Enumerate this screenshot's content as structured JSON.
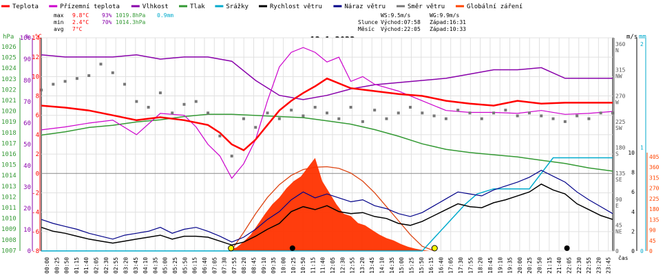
{
  "chart_data": {
    "type": "line",
    "title": "12.1.2023",
    "legend": [
      {
        "name": "Teplota",
        "color": "#ff0000"
      },
      {
        "name": "Přízemní teplota",
        "color": "#cc00cc"
      },
      {
        "name": "Vlhkost",
        "color": "#8800aa"
      },
      {
        "name": "Tlak",
        "color": "#339933"
      },
      {
        "name": "Srážky",
        "color": "#00aacc"
      },
      {
        "name": "Rychlost větru",
        "color": "#000000"
      },
      {
        "name": "Náraz větru",
        "color": "#000088"
      },
      {
        "name": "Směr větru",
        "color": "#777777"
      },
      {
        "name": "Globální záření",
        "color": "#ff4400"
      }
    ],
    "stats": {
      "max": {
        "label": "max",
        "temp": "9.8°C",
        "hum": "93%",
        "press": "1019.8hPa",
        "rain": "0.9mm"
      },
      "min": {
        "label": "min",
        "temp": "2.4°C",
        "hum": "70%",
        "press": "1014.3hPa"
      },
      "avg": {
        "label": "avg",
        "temp": "7°C"
      }
    },
    "info": {
      "ws": "WS:9.5m/s",
      "wg": "WG:9.9m/s",
      "sun_label": "Slunce",
      "sun_rise": "Východ:07:58",
      "sun_set": "Západ:16:31",
      "moon_label": "Měsíc",
      "moon_rise": "Východ:22:05",
      "moon_set": "Západ:10:33"
    },
    "axes": {
      "pressure": {
        "unit": "hPa",
        "ticks": [
          "1026",
          "1025",
          "1024",
          "1023",
          "1022",
          "1021",
          "1020",
          "1019",
          "1018",
          "1017",
          "1016",
          "1015",
          "1014",
          "1013",
          "1012",
          "1011",
          "1010",
          "1009",
          "1008",
          "1007"
        ]
      },
      "humidity": {
        "unit": "%",
        "ticks": [
          "100",
          "90",
          "80",
          "70",
          "60",
          "50",
          "40",
          "30",
          "20",
          "10",
          "0"
        ]
      },
      "temperature": {
        "unit": "°C",
        "ticks": [
          "14",
          "12",
          "10",
          "8",
          "6",
          "4",
          "2",
          "0",
          "-2",
          "-4",
          "-6",
          "-8"
        ],
        "ylim": [
          -8,
          14
        ]
      },
      "direction": {
        "ticks": [
          {
            "deg": "360",
            "dir": "N"
          },
          {
            "deg": "315",
            "dir": "NW"
          },
          {
            "deg": "270",
            "dir": "W"
          },
          {
            "deg": "225",
            "dir": "SW"
          },
          {
            "deg": "180",
            "dir": "S"
          },
          {
            "deg": "135",
            "dir": "SE"
          },
          {
            "deg": "90",
            "dir": "E"
          },
          {
            "deg": "45",
            "dir": "NE"
          },
          {
            "deg": "0",
            "dir": ""
          }
        ]
      },
      "wind": {
        "unit": "m/s",
        "ticks": [
          "10",
          "8",
          "6",
          "4",
          "2",
          "0"
        ]
      },
      "rain": {
        "unit": "mm",
        "ticks": [
          "2",
          "1",
          "0"
        ]
      },
      "radiation": {
        "ticks": [
          "405",
          "360",
          "315",
          "270",
          "225",
          "180",
          "135",
          "90",
          "45",
          "0"
        ]
      },
      "time": {
        "label": "čas",
        "ticks": [
          "00:00",
          "00:25",
          "00:50",
          "01:15",
          "01:40",
          "02:05",
          "02:30",
          "02:55",
          "03:20",
          "03:45",
          "04:10",
          "04:35",
          "05:00",
          "05:25",
          "05:50",
          "06:15",
          "06:40",
          "07:05",
          "07:30",
          "07:55",
          "08:20",
          "08:45",
          "09:10",
          "09:35",
          "10:00",
          "10:25",
          "10:50",
          "11:15",
          "11:40",
          "12:05",
          "12:30",
          "12:55",
          "13:20",
          "13:45",
          "14:10",
          "14:35",
          "15:00",
          "15:25",
          "15:50",
          "16:15",
          "16:40",
          "17:05",
          "17:30",
          "17:55",
          "18:20",
          "18:45",
          "19:10",
          "19:35",
          "20:00",
          "20:25",
          "20:50",
          "21:15",
          "21:40",
          "22:05",
          "22:30",
          "22:55",
          "23:20",
          "23:45"
        ]
      }
    },
    "series": {
      "temperature": {
        "x": [
          0,
          1,
          2,
          3,
          4,
          5,
          6,
          7,
          7.5,
          8,
          8.5,
          9,
          9.5,
          10,
          10.5,
          11,
          11.5,
          12,
          13,
          14,
          15,
          16,
          17,
          18,
          19,
          20,
          21,
          22,
          23,
          24
        ],
        "y": [
          7,
          6.8,
          6.5,
          6,
          5.5,
          5.8,
          5.5,
          5,
          4.2,
          3,
          2.4,
          3.5,
          5,
          6.5,
          7.5,
          8.3,
          9,
          9.8,
          8.8,
          8.5,
          8.2,
          8,
          7.5,
          7.2,
          7,
          7.5,
          7.2,
          7.3,
          7.3,
          7.3
        ]
      },
      "ground_temperature": {
        "x": [
          0,
          1,
          2,
          3,
          4,
          5,
          6,
          6.5,
          7,
          7.5,
          8,
          8.5,
          9,
          9.5,
          10,
          10.5,
          11,
          11.5,
          12,
          12.5,
          13,
          13.5,
          14,
          15,
          16,
          17,
          18,
          19,
          20,
          21,
          22,
          23,
          24
        ],
        "y": [
          4.5,
          4.8,
          5.2,
          5.5,
          4,
          6.2,
          6,
          4.8,
          3,
          1.8,
          -0.5,
          1,
          3.5,
          7.5,
          11,
          12.5,
          13,
          12.5,
          11.5,
          12,
          9.5,
          10,
          9.2,
          8.5,
          7.5,
          6.5,
          6.3,
          6.3,
          6.2,
          6.5,
          6.1,
          6.2,
          6.4
        ]
      },
      "humidity": {
        "x": [
          0,
          1,
          2,
          3,
          4,
          5,
          6,
          7,
          8,
          9,
          10,
          11,
          12,
          13,
          14,
          15,
          16,
          17,
          18,
          19,
          20,
          21,
          22,
          23,
          24
        ],
        "y": [
          92,
          91,
          91,
          91,
          92,
          90,
          91,
          91,
          89,
          80,
          73,
          71,
          73,
          76,
          78,
          79,
          80,
          81,
          83,
          85,
          85,
          86,
          81,
          81,
          81
        ]
      },
      "pressure": {
        "x": [
          0,
          1,
          2,
          3,
          4,
          5,
          6,
          7,
          8,
          9,
          10,
          11,
          12,
          13,
          14,
          15,
          16,
          17,
          18,
          19,
          20,
          21,
          22,
          23,
          24
        ],
        "y": [
          1017.6,
          1017.9,
          1018.3,
          1018.5,
          1018.8,
          1019,
          1019.3,
          1019.5,
          1019.5,
          1019.4,
          1019.3,
          1019.2,
          1018.9,
          1018.6,
          1018.1,
          1017.5,
          1016.8,
          1016.3,
          1016,
          1015.8,
          1015.6,
          1015.3,
          1015,
          1014.6,
          1014.3
        ]
      },
      "rain": {
        "x": [
          0,
          16,
          16.6,
          17.2,
          17.8,
          18.3,
          19,
          20.5,
          21.5,
          22.5,
          24
        ],
        "y": [
          0,
          0,
          0.15,
          0.3,
          0.45,
          0.55,
          0.6,
          0.6,
          0.9,
          0.9,
          0.9
        ]
      },
      "wind_speed": {
        "x": [
          0,
          0.5,
          1,
          1.5,
          2,
          2.5,
          3,
          3.5,
          4,
          4.5,
          5,
          5.5,
          6,
          6.5,
          7,
          7.5,
          8,
          8.5,
          9,
          9.5,
          10,
          10.5,
          11,
          11.5,
          12,
          12.5,
          13,
          13.5,
          14,
          14.5,
          15,
          15.5,
          16,
          16.5,
          17,
          17.5,
          18,
          18.5,
          19,
          19.5,
          20,
          20.5,
          21,
          21.5,
          22,
          22.5,
          23,
          23.5,
          24
        ],
        "y": [
          2.4,
          2,
          1.8,
          1.5,
          1.2,
          1,
          0.8,
          1,
          1.2,
          1.4,
          1.6,
          1.2,
          1.5,
          1.5,
          1.4,
          1.0,
          0.6,
          0.9,
          1.5,
          2.2,
          2.8,
          4.0,
          4.5,
          4.2,
          4.6,
          4.0,
          3.8,
          3.9,
          3.5,
          3.3,
          2.8,
          2.6,
          3.0,
          3.6,
          4.2,
          4.8,
          4.5,
          4.4,
          4.9,
          5.2,
          5.6,
          6.0,
          6.8,
          6.2,
          5.8,
          4.8,
          4.2,
          3.6,
          3.2
        ]
      },
      "wind_gust": {
        "x": [
          0,
          0.5,
          1,
          1.5,
          2,
          2.5,
          3,
          3.5,
          4,
          4.5,
          5,
          5.5,
          6,
          6.5,
          7,
          7.5,
          8,
          8.5,
          9,
          9.5,
          10,
          10.5,
          11,
          11.5,
          12,
          12.5,
          13,
          13.5,
          14,
          14.5,
          15,
          15.5,
          16,
          16.5,
          17,
          17.5,
          18,
          18.5,
          19,
          19.5,
          20,
          20.5,
          21,
          21.5,
          22,
          22.5,
          23,
          23.5,
          24
        ],
        "y": [
          3.2,
          2.8,
          2.5,
          2.2,
          1.8,
          1.5,
          1.2,
          1.6,
          1.8,
          2,
          2.4,
          1.8,
          2.2,
          2.4,
          2.0,
          1.5,
          0.9,
          1.4,
          2.2,
          3.2,
          4.0,
          5.2,
          6.0,
          5.4,
          5.8,
          5.4,
          5.0,
          5.2,
          4.6,
          4.3,
          3.8,
          3.5,
          3.9,
          4.6,
          5.3,
          6.0,
          5.8,
          5.6,
          6.2,
          6.6,
          7.0,
          7.5,
          8.2,
          7.6,
          7.0,
          6.0,
          5.2,
          4.5,
          3.8
        ]
      },
      "wind_direction_deg": {
        "x": [
          0,
          0.5,
          1,
          1.5,
          2,
          2.5,
          3,
          3.5,
          4,
          4.5,
          5,
          5.5,
          6,
          6.5,
          7,
          7.5,
          8,
          8.5,
          9,
          9.5,
          10,
          10.5,
          11,
          11.5,
          12,
          12.5,
          13,
          13.5,
          14,
          14.5,
          15,
          15.5,
          16,
          16.5,
          17,
          17.5,
          18,
          18.5,
          19,
          19.5,
          20,
          20.5,
          21,
          21.5,
          22,
          22.5,
          23,
          23.5,
          24
        ],
        "y": [
          280,
          290,
          295,
          300,
          305,
          325,
          310,
          290,
          260,
          250,
          275,
          240,
          255,
          260,
          240,
          200,
          165,
          230,
          215,
          240,
          230,
          245,
          235,
          250,
          240,
          230,
          250,
          225,
          245,
          230,
          240,
          250,
          240,
          235,
          230,
          245,
          240,
          230,
          240,
          245,
          235,
          240,
          235,
          230,
          225,
          235,
          230,
          240,
          240
        ]
      },
      "radiation": {
        "x": [
          7.9,
          8.2,
          8.5,
          8.8,
          9.1,
          9.4,
          9.7,
          10,
          10.3,
          10.6,
          10.9,
          11.2,
          11.5,
          11.8,
          12.1,
          12.4,
          12.7,
          13,
          13.3,
          13.6,
          13.9,
          14.2,
          14.5,
          14.8,
          15.1,
          15.4,
          15.7,
          16,
          16.3
        ],
        "y": [
          5,
          15,
          40,
          70,
          115,
          160,
          200,
          230,
          270,
          300,
          320,
          360,
          400,
          300,
          250,
          200,
          160,
          150,
          120,
          110,
          90,
          70,
          55,
          45,
          30,
          18,
          10,
          4,
          0
        ]
      },
      "clear_sky_radiation": {
        "x": [
          7.97,
          8.5,
          9,
          9.5,
          10,
          10.5,
          11,
          11.5,
          12,
          12.5,
          13,
          13.5,
          14,
          14.5,
          15,
          15.5,
          16,
          16.52
        ],
        "y": [
          0,
          80,
          160,
          230,
          285,
          325,
          350,
          360,
          362,
          355,
          335,
          300,
          250,
          190,
          130,
          70,
          20,
          0
        ]
      }
    }
  }
}
